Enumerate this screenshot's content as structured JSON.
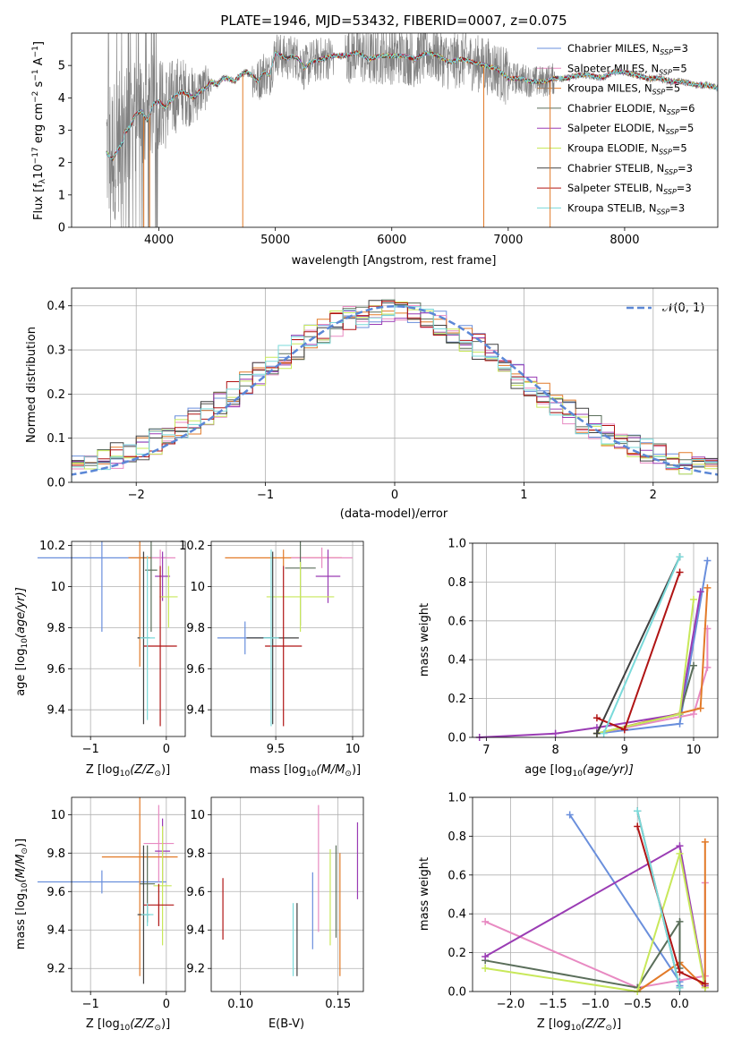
{
  "title": "PLATE=1946, MJD=53432, FIBERID=0007, z=0.075",
  "colors": {
    "data": "#808080",
    "chabrier_miles": "#6a8fdc",
    "salpeter_miles": "#e88ac2",
    "kroupa_miles": "#e27a28",
    "chabrier_elodie": "#5a6e5a",
    "salpeter_elodie": "#9a3cb4",
    "kroupa_elodie": "#c8e85a",
    "chabrier_stelib": "#404040",
    "salpeter_stelib": "#b01414",
    "kroupa_stelib": "#7adada",
    "normal": "#5b87d6"
  },
  "chart_data": [
    {
      "type": "line",
      "id": "spectrum",
      "title": "PLATE=1946, MJD=53432, FIBERID=0007, z=0.075",
      "xlabel": "wavelength [Angstrom, rest frame]",
      "ylabel_parts": {
        "a": "Flux [f",
        "b": "λ",
        "c": "10",
        "d": "−17",
        "e": " erg cm",
        "f": "−2",
        "g": " s",
        "h": "−1",
        "i": " A",
        "j": "−1",
        "k": "]"
      },
      "xlim": [
        3250,
        8800
      ],
      "ylim": [
        0,
        6
      ],
      "xticks": [
        4000,
        5000,
        6000,
        7000,
        8000
      ],
      "yticks": [
        0,
        1,
        2,
        3,
        4,
        5
      ],
      "grid": false,
      "legend_loc": "upper right",
      "spectrum_x": [
        3550,
        3600,
        3650,
        3700,
        3750,
        3800,
        3850,
        3900,
        3950,
        4000,
        4050,
        4100,
        4150,
        4200,
        4250,
        4300,
        4350,
        4400,
        4450,
        4500,
        4550,
        4600,
        4650,
        4700,
        4750,
        4800,
        4850,
        4900,
        4950,
        5000,
        5050,
        5100,
        5150,
        5200,
        5250,
        5300,
        5400,
        5500,
        5600,
        5700,
        5800,
        5900,
        6000,
        6100,
        6200,
        6300,
        6400,
        6500,
        6600,
        6700,
        6800,
        6900,
        7000,
        7100,
        7200,
        7300,
        7400,
        7500,
        7600,
        7700,
        7800,
        7900,
        8000,
        8100,
        8200,
        8300,
        8400,
        8500,
        8600,
        8700,
        8800
      ],
      "spectrum_y": [
        2.5,
        2.3,
        2.6,
        2.9,
        3.1,
        3.5,
        3.6,
        3.3,
        3.8,
        3.9,
        3.7,
        3.9,
        4.1,
        4.2,
        4.1,
        4.0,
        4.2,
        4.3,
        4.5,
        4.4,
        4.6,
        4.6,
        4.5,
        4.7,
        4.8,
        4.7,
        4.5,
        4.8,
        4.7,
        5.4,
        5.3,
        5.2,
        5.3,
        5.2,
        4.9,
        5.1,
        5.2,
        5.3,
        5.3,
        5.4,
        5.2,
        5.3,
        5.3,
        5.3,
        5.2,
        5.4,
        5.3,
        5.1,
        5.2,
        5.1,
        5.0,
        4.9,
        4.6,
        4.6,
        4.5,
        4.5,
        4.6,
        4.6,
        4.7,
        4.7,
        4.6,
        4.8,
        4.8,
        4.7,
        4.6,
        4.6,
        4.5,
        4.5,
        4.4,
        4.4,
        4.3
      ],
      "noise_regions": [
        [
          3550,
          4450
        ],
        [
          4800,
          5500
        ],
        [
          5600,
          7000
        ],
        [
          7000,
          7400
        ]
      ],
      "spikes": [
        4720,
        6790,
        7360,
        3870,
        3920
      ],
      "series": [
        {
          "label": "Chabrier MILES",
          "nssp": "3",
          "color": "#6a8fdc"
        },
        {
          "label": "Salpeter MILES",
          "nssp": "5",
          "color": "#e88ac2"
        },
        {
          "label": "Kroupa MILES",
          "nssp": "5",
          "color": "#e27a28"
        },
        {
          "label": "Chabrier ELODIE",
          "nssp": "6",
          "color": "#5a6e5a"
        },
        {
          "label": "Salpeter ELODIE",
          "nssp": "5",
          "color": "#9a3cb4"
        },
        {
          "label": "Kroupa ELODIE",
          "nssp": "5",
          "color": "#c8e85a"
        },
        {
          "label": "Chabrier STELIB",
          "nssp": "3",
          "color": "#404040"
        },
        {
          "label": "Salpeter STELIB",
          "nssp": "3",
          "color": "#b01414"
        },
        {
          "label": "Kroupa STELIB",
          "nssp": "3",
          "color": "#7adada"
        }
      ],
      "legend_sub": "SSP"
    },
    {
      "type": "bar",
      "id": "residuals",
      "xlabel": "(data-model)/error",
      "ylabel": "Normed distribution",
      "xlim": [
        -2.5,
        2.5
      ],
      "ylim": [
        0,
        0.44
      ],
      "xticks": [
        -2,
        -1,
        0,
        1,
        2
      ],
      "yticks": [
        0.0,
        0.1,
        0.2,
        0.3,
        0.4
      ],
      "grid": true,
      "legend_label": "𝒩(0, 1)",
      "legend_loc": "upper right",
      "bin_width": 0.1,
      "bins_start": -2.5,
      "note": "step histograms for 9 models"
    },
    {
      "type": "scatter",
      "id": "age_vs_Z",
      "xlabel_parts": {
        "a": "Z [log",
        "b": "10",
        "c": "(Z/Z",
        "d": "⊙",
        "e": ")]"
      },
      "ylabel_parts": {
        "a": "age  [log",
        "b": "10",
        "c": "(age/yr)]"
      },
      "xlim": [
        -1.25,
        0.25
      ],
      "ylim": [
        9.27,
        10.22
      ],
      "xticks": [
        -1,
        0
      ],
      "yticks": [
        9.4,
        9.6,
        9.8,
        10.0,
        10.2
      ],
      "grid": true,
      "points": [
        {
          "x": -0.85,
          "xerr": 0.85,
          "y": 10.14,
          "yerr": 0.36,
          "color": "#6a8fdc"
        },
        {
          "x": -0.08,
          "xerr": 0.2,
          "y": 10.14,
          "yerr": 0.04,
          "color": "#e88ac2"
        },
        {
          "x": -0.35,
          "xerr": 0.15,
          "y": 10.14,
          "yerr": 0.53,
          "color": "#e27a28"
        },
        {
          "x": -0.2,
          "xerr": 0.08,
          "y": 10.08,
          "yerr": 0.3,
          "color": "#5a6e5a"
        },
        {
          "x": -0.05,
          "xerr": 0.1,
          "y": 10.05,
          "yerr": 0.12,
          "color": "#9a3cb4"
        },
        {
          "x": 0.03,
          "xerr": 0.12,
          "y": 9.95,
          "yerr": 0.15,
          "color": "#c8e85a"
        },
        {
          "x": -0.3,
          "xerr": 0.08,
          "y": 9.75,
          "yerr": 0.42,
          "color": "#404040"
        },
        {
          "x": -0.08,
          "xerr": 0.22,
          "y": 9.71,
          "yerr": 0.39,
          "color": "#b01414"
        },
        {
          "x": -0.25,
          "xerr": 0.1,
          "y": 9.75,
          "yerr": 0.4,
          "color": "#7adada"
        }
      ]
    },
    {
      "type": "scatter",
      "id": "age_vs_mass",
      "xlabel_parts": {
        "a": "mass [log",
        "b": "10",
        "c": "(M/M",
        "d": "⊙",
        "e": ")]"
      },
      "xlim": [
        9.08,
        10.07
      ],
      "ylim": [
        9.27,
        10.22
      ],
      "xticks": [
        9.5,
        10.0
      ],
      "yticks": [
        9.4,
        9.6,
        9.8,
        10.0,
        10.2
      ],
      "grid": true,
      "points": [
        {
          "x": 9.55,
          "xerr": 0.38,
          "y": 10.14,
          "yerr": 0.04,
          "color": "#e27a28"
        },
        {
          "x": 9.8,
          "xerr": 0.2,
          "y": 10.14,
          "yerr": 0.05,
          "color": "#e88ac2"
        },
        {
          "x": 9.66,
          "xerr": 0.1,
          "y": 10.09,
          "yerr": 0.28,
          "color": "#5a6e5a"
        },
        {
          "x": 9.84,
          "xerr": 0.08,
          "y": 10.05,
          "yerr": 0.13,
          "color": "#9a3cb4"
        },
        {
          "x": 9.66,
          "xerr": 0.22,
          "y": 9.95,
          "yerr": 0.17,
          "color": "#c8e85a"
        },
        {
          "x": 9.3,
          "xerr": 0.18,
          "y": 9.75,
          "yerr": 0.08,
          "color": "#6a8fdc"
        },
        {
          "x": 9.48,
          "xerr": 0.17,
          "y": 9.75,
          "yerr": 0.42,
          "color": "#404040"
        },
        {
          "x": 9.55,
          "xerr": 0.12,
          "y": 9.71,
          "yerr": 0.39,
          "color": "#b01414"
        },
        {
          "x": 9.47,
          "xerr": 0.05,
          "y": 9.75,
          "yerr": 0.43,
          "color": "#7adada"
        }
      ]
    },
    {
      "type": "line",
      "id": "mass_weight_vs_age",
      "xlabel_parts": {
        "a": "age  [log",
        "b": "10",
        "c": "(age/yr)]"
      },
      "ylabel": "mass weight",
      "xlim": [
        6.8,
        10.35
      ],
      "ylim": [
        0,
        1.0
      ],
      "xticks": [
        7,
        8,
        9,
        10
      ],
      "yticks": [
        0.0,
        0.2,
        0.4,
        0.6,
        0.8,
        1.0
      ],
      "grid": true,
      "series": [
        {
          "color": "#6a8fdc",
          "x": [
            8.6,
            9.8,
            10.2
          ],
          "y": [
            0.02,
            0.07,
            0.91
          ]
        },
        {
          "color": "#e88ac2",
          "x": [
            8.6,
            10.0,
            10.2,
            10.2
          ],
          "y": [
            0.02,
            0.12,
            0.36,
            0.56
          ]
        },
        {
          "color": "#e27a28",
          "x": [
            8.6,
            10.1,
            10.2
          ],
          "y": [
            0.02,
            0.15,
            0.77
          ]
        },
        {
          "color": "#5a6e5a",
          "x": [
            8.6,
            9.8,
            10.0
          ],
          "y": [
            0.02,
            0.12,
            0.37
          ]
        },
        {
          "color": "#9a3cb4",
          "x": [
            6.9,
            8.0,
            8.6,
            9.8,
            10.1
          ],
          "y": [
            0.0,
            0.02,
            0.05,
            0.12,
            0.75
          ]
        },
        {
          "color": "#c8e85a",
          "x": [
            8.6,
            9.8,
            10.0
          ],
          "y": [
            0.02,
            0.12,
            0.71
          ]
        },
        {
          "color": "#404040",
          "x": [
            8.6,
            9.8
          ],
          "y": [
            0.02,
            0.93
          ]
        },
        {
          "color": "#b01414",
          "x": [
            8.6,
            9.0,
            9.8
          ],
          "y": [
            0.1,
            0.04,
            0.85
          ]
        },
        {
          "color": "#7adada",
          "x": [
            8.7,
            9.8
          ],
          "y": [
            0.02,
            0.93
          ]
        }
      ]
    },
    {
      "type": "scatter",
      "id": "mass_vs_Z",
      "xlabel_parts": {
        "a": "Z [log",
        "b": "10",
        "c": "(Z/Z",
        "d": "⊙",
        "e": ")]"
      },
      "ylabel_parts": {
        "a": "mass [log",
        "b": "10",
        "c": "(M/M",
        "d": "⊙",
        "e": ")]"
      },
      "xlim": [
        -1.25,
        0.25
      ],
      "ylim": [
        9.08,
        10.09
      ],
      "xticks": [
        -1,
        0
      ],
      "yticks": [
        9.2,
        9.4,
        9.6,
        9.8,
        10.0
      ],
      "grid": true,
      "points": [
        {
          "x": -0.85,
          "xerr": 0.85,
          "y": 9.65,
          "yerr": 0.06,
          "color": "#6a8fdc"
        },
        {
          "x": -0.1,
          "xerr": 0.2,
          "y": 9.85,
          "yerr": 0.2,
          "color": "#e88ac2"
        },
        {
          "x": -0.35,
          "xerr": 0.5,
          "y": 9.78,
          "yerr": 0.62,
          "color": "#e27a28"
        },
        {
          "x": -0.25,
          "xerr": 0.1,
          "y": 9.64,
          "yerr": 0.2,
          "color": "#5a6e5a"
        },
        {
          "x": -0.05,
          "xerr": 0.1,
          "y": 9.81,
          "yerr": 0.17,
          "color": "#9a3cb4"
        },
        {
          "x": -0.05,
          "xerr": 0.12,
          "y": 9.63,
          "yerr": 0.31,
          "color": "#c8e85a"
        },
        {
          "x": -0.3,
          "xerr": 0.08,
          "y": 9.48,
          "yerr": 0.36,
          "color": "#404040"
        },
        {
          "x": -0.1,
          "xerr": 0.2,
          "y": 9.53,
          "yerr": 0.11,
          "color": "#b01414"
        },
        {
          "x": -0.25,
          "xerr": 0.08,
          "y": 9.48,
          "yerr": 0.06,
          "color": "#7adada"
        }
      ]
    },
    {
      "type": "scatter",
      "id": "mass_vs_ebv",
      "xlabel": "E(B-V)",
      "xlim": [
        0.085,
        0.163
      ],
      "ylim": [
        9.08,
        10.09
      ],
      "xticks": [
        0.1,
        0.15
      ],
      "xticklabels": [
        "0.10",
        "0.15"
      ],
      "yticks": [
        9.2,
        9.4,
        9.6,
        9.8,
        10.0
      ],
      "grid": true,
      "points": [
        {
          "x": 0.091,
          "xerr": 0.0,
          "y": 9.51,
          "yerr": 0.16,
          "color": "#b01414"
        },
        {
          "x": 0.127,
          "xerr": 0.0,
          "y": 9.35,
          "yerr": 0.19,
          "color": "#7adada"
        },
        {
          "x": 0.129,
          "xerr": 0.0,
          "y": 9.35,
          "yerr": 0.19,
          "color": "#404040"
        },
        {
          "x": 0.137,
          "xerr": 0.0,
          "y": 9.5,
          "yerr": 0.2,
          "color": "#6a8fdc"
        },
        {
          "x": 0.14,
          "xerr": 0.0,
          "y": 9.72,
          "yerr": 0.33,
          "color": "#e88ac2"
        },
        {
          "x": 0.146,
          "xerr": 0.0,
          "y": 9.57,
          "yerr": 0.25,
          "color": "#c8e85a"
        },
        {
          "x": 0.149,
          "xerr": 0.0,
          "y": 9.6,
          "yerr": 0.24,
          "color": "#5a6e5a"
        },
        {
          "x": 0.151,
          "xerr": 0.0,
          "y": 9.48,
          "yerr": 0.32,
          "color": "#e27a28"
        },
        {
          "x": 0.16,
          "xerr": 0.0,
          "y": 9.76,
          "yerr": 0.2,
          "color": "#9a3cb4"
        }
      ]
    },
    {
      "type": "line",
      "id": "mass_weight_vs_Z",
      "xlabel_parts": {
        "a": "Z [log",
        "b": "10",
        "c": "(Z/Z",
        "d": "⊙",
        "e": ")]"
      },
      "ylabel": "mass weight",
      "xlim": [
        -2.45,
        0.45
      ],
      "ylim": [
        0,
        1.0
      ],
      "xticks": [
        -2.0,
        -1.5,
        -1.0,
        -0.5,
        0.0
      ],
      "xticklabels": [
        "−2.0",
        "−1.5",
        "−1.0",
        "−0.5",
        "0.0"
      ],
      "yticks": [
        0.0,
        0.2,
        0.4,
        0.6,
        0.8,
        1.0
      ],
      "grid": true,
      "series": [
        {
          "color": "#6a8fdc",
          "x": [
            -1.3,
            0.0,
            0.0
          ],
          "y": [
            0.91,
            0.05,
            0.03
          ]
        },
        {
          "color": "#e88ac2",
          "x": [
            -2.3,
            -0.5,
            0.3,
            0.3
          ],
          "y": [
            0.36,
            0.02,
            0.08,
            0.56
          ]
        },
        {
          "color": "#e27a28",
          "x": [
            -0.5,
            0.0,
            0.3,
            0.3
          ],
          "y": [
            0.0,
            0.15,
            0.02,
            0.77
          ]
        },
        {
          "color": "#5a6e5a",
          "x": [
            -2.3,
            -0.5,
            0.0,
            0.0
          ],
          "y": [
            0.16,
            0.02,
            0.36,
            0.12
          ]
        },
        {
          "color": "#9a3cb4",
          "x": [
            -2.3,
            0.0,
            0.3
          ],
          "y": [
            0.18,
            0.75,
            0.03
          ]
        },
        {
          "color": "#c8e85a",
          "x": [
            -2.3,
            -0.5,
            0.0,
            0.3
          ],
          "y": [
            0.12,
            0.0,
            0.71,
            0.02
          ]
        },
        {
          "color": "#404040",
          "x": [
            -0.5,
            0.0
          ],
          "y": [
            0.93,
            0.02
          ]
        },
        {
          "color": "#b01414",
          "x": [
            -0.5,
            0.0,
            0.3
          ],
          "y": [
            0.85,
            0.1,
            0.04
          ]
        },
        {
          "color": "#7adada",
          "x": [
            -0.5,
            0.0
          ],
          "y": [
            0.93,
            0.02
          ]
        }
      ]
    }
  ]
}
